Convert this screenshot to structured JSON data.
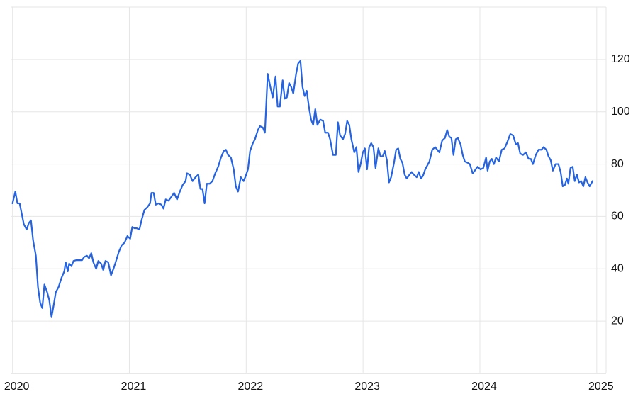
{
  "chart_data": {
    "type": "line",
    "color": "#2563e0",
    "grid": true,
    "xlim": [
      2019.99,
      2025.08
    ],
    "xticks": [
      2020,
      2021,
      2022,
      2023,
      2024,
      2025
    ],
    "ylim": [
      0,
      140
    ],
    "yticks": [
      20,
      40,
      60,
      80,
      100,
      120
    ],
    "x": [
      2020.0,
      2020.024,
      2020.042,
      2020.061,
      2020.097,
      2020.121,
      2020.14,
      2020.158,
      2020.176,
      2020.2,
      2020.218,
      2020.237,
      2020.255,
      2020.273,
      2020.297,
      2020.315,
      2020.334,
      2020.352,
      2020.37,
      2020.394,
      2020.419,
      2020.443,
      2020.455,
      2020.473,
      2020.485,
      2020.504,
      2020.522,
      2020.546,
      2020.57,
      2020.595,
      2020.613,
      2020.637,
      2020.655,
      2020.674,
      2020.692,
      2020.716,
      2020.734,
      2020.758,
      2020.777,
      2020.795,
      2020.819,
      2020.843,
      2020.868,
      2020.886,
      2020.91,
      2020.934,
      2020.959,
      2020.983,
      2021.007,
      2021.025,
      2021.044,
      2021.062,
      2021.086,
      2021.104,
      2021.129,
      2021.153,
      2021.177,
      2021.189,
      2021.208,
      2021.226,
      2021.25,
      2021.274,
      2021.292,
      2021.311,
      2021.335,
      2021.359,
      2021.383,
      2021.408,
      2021.432,
      2021.456,
      2021.481,
      2021.493,
      2021.517,
      2021.541,
      2021.566,
      2021.59,
      2021.608,
      2021.626,
      2021.644,
      2021.663,
      2021.687,
      2021.711,
      2021.735,
      2021.76,
      2021.784,
      2021.808,
      2021.826,
      2021.845,
      2021.869,
      2021.893,
      2021.911,
      2021.93,
      2021.954,
      2021.978,
      2021.996,
      2022.015,
      2022.033,
      2022.057,
      2022.075,
      2022.1,
      2022.118,
      2022.142,
      2022.16,
      2022.184,
      2022.209,
      2022.227,
      2022.251,
      2022.269,
      2022.288,
      2022.312,
      2022.33,
      2022.348,
      2022.367,
      2022.385,
      2022.403,
      2022.427,
      2022.445,
      2022.464,
      2022.482,
      2022.5,
      2022.518,
      2022.536,
      2022.555,
      2022.573,
      2022.591,
      2022.609,
      2022.634,
      2022.658,
      2022.676,
      2022.7,
      2022.718,
      2022.743,
      2022.767,
      2022.785,
      2022.803,
      2022.828,
      2022.846,
      2022.864,
      2022.882,
      2022.9,
      2022.925,
      2022.943,
      2022.961,
      2022.979,
      2022.998,
      2023.016,
      2023.034,
      2023.052,
      2023.07,
      2023.089,
      2023.107,
      2023.131,
      2023.149,
      2023.168,
      2023.186,
      2023.204,
      2023.222,
      2023.24,
      2023.265,
      2023.283,
      2023.301,
      2023.319,
      2023.337,
      2023.356,
      2023.374,
      2023.398,
      2023.416,
      2023.434,
      2023.459,
      2023.477,
      2023.495,
      2023.513,
      2023.532,
      2023.55,
      2023.568,
      2023.592,
      2023.617,
      2023.635,
      2023.653,
      2023.677,
      2023.701,
      2023.72,
      2023.738,
      2023.756,
      2023.774,
      2023.793,
      2023.811,
      2023.835,
      2023.853,
      2023.871,
      2023.896,
      2023.914,
      2023.938,
      2023.956,
      2023.98,
      2024.005,
      2024.029,
      2024.053,
      2024.066,
      2024.084,
      2024.102,
      2024.12,
      2024.138,
      2024.163,
      2024.187,
      2024.211,
      2024.235,
      2024.26,
      2024.284,
      2024.308,
      2024.326,
      2024.345,
      2024.369,
      2024.393,
      2024.417,
      2024.436,
      2024.454,
      2024.478,
      2024.502,
      2024.527,
      2024.545,
      2024.569,
      2024.587,
      2024.606,
      2024.624,
      2024.648,
      2024.672,
      2024.691,
      2024.709,
      2024.727,
      2024.745,
      2024.757,
      2024.775,
      2024.794,
      2024.812,
      2024.83,
      2024.848,
      2024.866,
      2024.885,
      2024.903,
      2024.921,
      2024.939,
      2024.964
    ],
    "values": [
      65,
      69.5,
      65,
      65,
      57,
      55,
      57.5,
      58.5,
      51,
      45,
      33,
      27,
      25,
      34,
      31,
      28,
      21.5,
      26,
      31,
      33,
      36.5,
      39,
      42.5,
      39,
      42,
      41,
      43,
      43.3,
      43.3,
      43.3,
      44.5,
      45,
      44,
      46,
      42.5,
      40,
      43,
      42,
      39.5,
      43,
      42.5,
      37.5,
      40.5,
      43,
      46.5,
      49,
      50,
      52.5,
      51.5,
      56,
      55.5,
      55.5,
      55,
      58.5,
      62.5,
      63.5,
      65,
      69,
      69,
      64.5,
      65,
      64.5,
      63,
      66.5,
      66,
      67.5,
      69,
      66.5,
      69.5,
      72,
      73.5,
      76.5,
      76,
      73.5,
      75,
      76,
      70.5,
      70.5,
      65,
      72.5,
      72.5,
      73.5,
      76.5,
      79,
      82.5,
      85,
      85.5,
      83.5,
      82.5,
      78,
      71.5,
      69.5,
      75,
      73.5,
      75.5,
      78,
      85,
      88,
      89.5,
      93,
      94.5,
      94,
      92,
      114.5,
      109,
      105.5,
      113.5,
      102,
      102,
      112,
      105,
      105.5,
      111,
      109.5,
      107,
      114.5,
      118.5,
      119.5,
      109.5,
      106,
      108,
      102,
      97,
      95,
      101,
      95,
      97,
      96.5,
      92,
      92,
      89.5,
      83.5,
      83.5,
      96,
      91,
      89.5,
      91.5,
      96.5,
      95,
      89.5,
      84.5,
      86.5,
      77,
      80,
      84.5,
      86,
      78,
      86.5,
      88,
      86.5,
      78.5,
      86,
      83,
      83,
      85,
      81.5,
      73,
      75,
      80.5,
      85.5,
      86,
      82,
      80.5,
      76,
      74.5,
      76,
      77,
      76,
      75,
      77,
      74.5,
      75.5,
      78,
      79.5,
      81,
      85.5,
      86.5,
      85.5,
      84.5,
      89,
      90,
      93,
      90.5,
      90,
      83.5,
      89.5,
      90,
      87.5,
      83.5,
      81,
      80.5,
      80,
      76.5,
      77.5,
      79,
      78,
      78.5,
      82.5,
      77.5,
      81,
      82,
      80,
      82.5,
      81,
      85.5,
      86,
      88.5,
      91.5,
      91,
      87.5,
      88,
      84,
      83.5,
      84.5,
      82,
      82,
      80,
      83.5,
      85.5,
      85.5,
      86.5,
      85.5,
      83,
      81.5,
      77.5,
      80,
      80,
      77,
      71.5,
      72,
      74.5,
      72.5,
      78.5,
      79,
      73.5,
      76,
      73,
      73.5,
      71.5,
      75,
      73,
      71.5,
      73.5
    ]
  }
}
